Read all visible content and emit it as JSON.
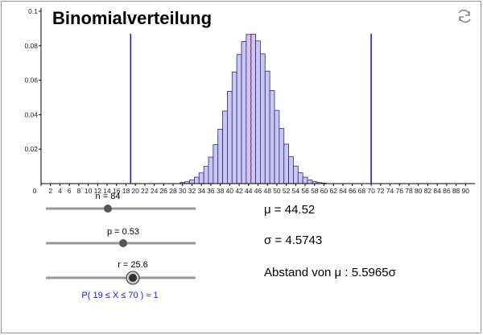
{
  "chart_data": {
    "type": "bar",
    "title": "Binomialverteilung",
    "x": [
      30,
      31,
      32,
      33,
      34,
      35,
      36,
      37,
      38,
      39,
      40,
      41,
      42,
      43,
      44,
      45,
      46,
      47,
      48,
      49,
      50,
      51,
      52,
      53,
      54,
      55,
      56,
      57,
      58,
      59,
      60
    ],
    "values": [
      0.0006,
      0.0011,
      0.0021,
      0.0037,
      0.0062,
      0.01,
      0.0154,
      0.0226,
      0.0316,
      0.0421,
      0.0535,
      0.0648,
      0.0749,
      0.0825,
      0.0866,
      0.0867,
      0.0828,
      0.0753,
      0.0653,
      0.054,
      0.0425,
      0.032,
      0.0229,
      0.0156,
      0.0102,
      0.0063,
      0.0037,
      0.0021,
      0.0011,
      0.0006,
      0.0003
    ],
    "color": "#c9c6f2",
    "xlim": [
      0,
      92
    ],
    "ylim": [
      0,
      0.1
    ],
    "xticks": [
      0,
      2,
      4,
      6,
      8,
      10,
      12,
      14,
      16,
      18,
      20,
      22,
      24,
      26,
      28,
      30,
      32,
      34,
      36,
      38,
      40,
      42,
      44,
      46,
      48,
      50,
      52,
      54,
      56,
      58,
      60,
      62,
      64,
      66,
      68,
      70,
      72,
      74,
      76,
      78,
      80,
      82,
      84,
      86,
      88,
      90
    ],
    "yticks": [
      0.02,
      0.04,
      0.06,
      0.08,
      0.1
    ],
    "mean": 44.52,
    "bounds": [
      19,
      70
    ]
  },
  "sliders": [
    "n = 84",
    "p = 0.53",
    "r = 25.6"
  ],
  "probability": "P(  19 ≤ X ≤ 70 ) ≈ 1",
  "stats": [
    "μ = 44.52",
    "σ = 4.5743",
    "Abstand von μ : 5.5965σ"
  ]
}
